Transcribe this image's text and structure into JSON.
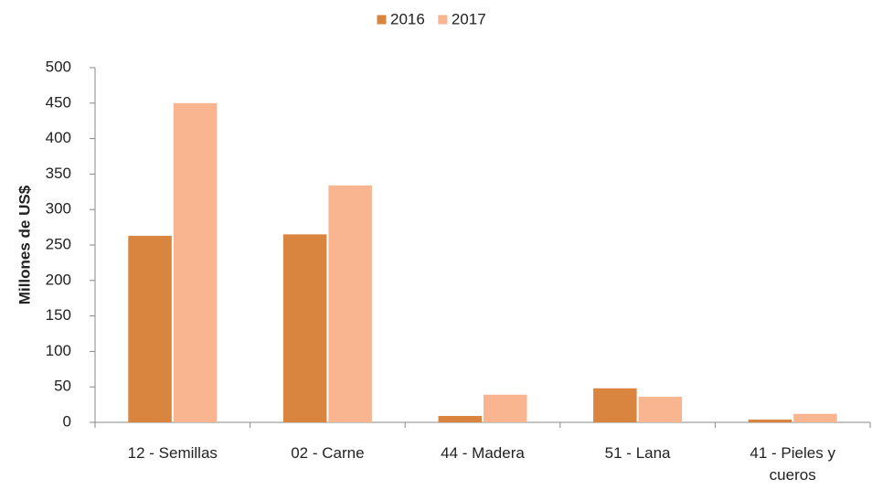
{
  "chart_data": {
    "type": "bar",
    "y_label": "Millones de US$",
    "categories": [
      "12 - Semillas",
      "02 - Carne",
      "44 - Madera",
      "51 - Lana",
      "41 - Pieles y cueros"
    ],
    "series": [
      {
        "name": "2016",
        "color": "#d9843f",
        "values": [
          263,
          265,
          9,
          48,
          4
        ]
      },
      {
        "name": "2017",
        "color": "#f8b58f",
        "values": [
          450,
          334,
          39,
          36,
          12
        ]
      }
    ],
    "ylim": [
      0,
      500
    ],
    "yticks": [
      0,
      50,
      100,
      150,
      200,
      250,
      300,
      350,
      400,
      450,
      500
    ],
    "legend": "top"
  }
}
